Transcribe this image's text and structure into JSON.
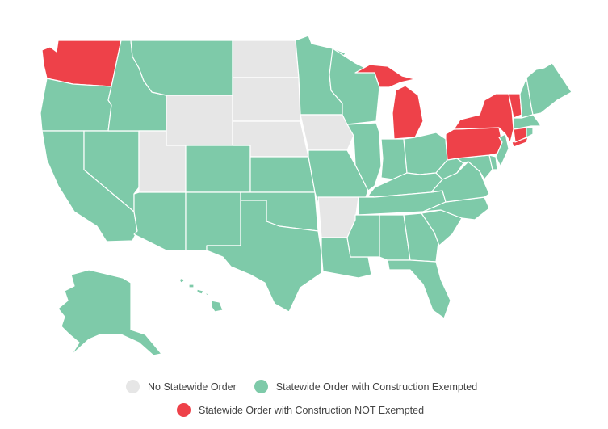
{
  "colors": {
    "none": "#e6e6e6",
    "exempt": "#7ecaa9",
    "not_exempt": "#ee4149"
  },
  "legend": [
    {
      "key": "none",
      "label": "No Statewide Order"
    },
    {
      "key": "exempt",
      "label": "Statewide Order with Construction Exempted"
    },
    {
      "key": "not_exempt",
      "label": "Statewide Order with Construction NOT Exempted"
    }
  ],
  "states": {
    "WA": "not_exempt",
    "OR": "exempt",
    "CA": "exempt",
    "NV": "exempt",
    "ID": "exempt",
    "MT": "exempt",
    "WY": "none",
    "UT": "none",
    "AZ": "exempt",
    "CO": "exempt",
    "NM": "exempt",
    "ND": "none",
    "SD": "none",
    "NE": "none",
    "KS": "exempt",
    "OK": "exempt",
    "TX": "exempt",
    "MN": "exempt",
    "IA": "none",
    "MO": "exempt",
    "AR": "none",
    "LA": "exempt",
    "WI": "exempt",
    "IL": "exempt",
    "MI": "not_exempt",
    "IN": "exempt",
    "OH": "exempt",
    "KY": "exempt",
    "TN": "exempt",
    "MS": "exempt",
    "AL": "exempt",
    "GA": "exempt",
    "FL": "exempt",
    "SC": "exempt",
    "NC": "exempt",
    "VA": "exempt",
    "WV": "exempt",
    "MD": "exempt",
    "DE": "exempt",
    "NJ": "exempt",
    "PA": "not_exempt",
    "NY": "not_exempt",
    "CT": "not_exempt",
    "RI": "exempt",
    "MA": "exempt",
    "VT": "not_exempt",
    "NH": "exempt",
    "ME": "exempt",
    "AK": "exempt",
    "HI": "exempt"
  }
}
